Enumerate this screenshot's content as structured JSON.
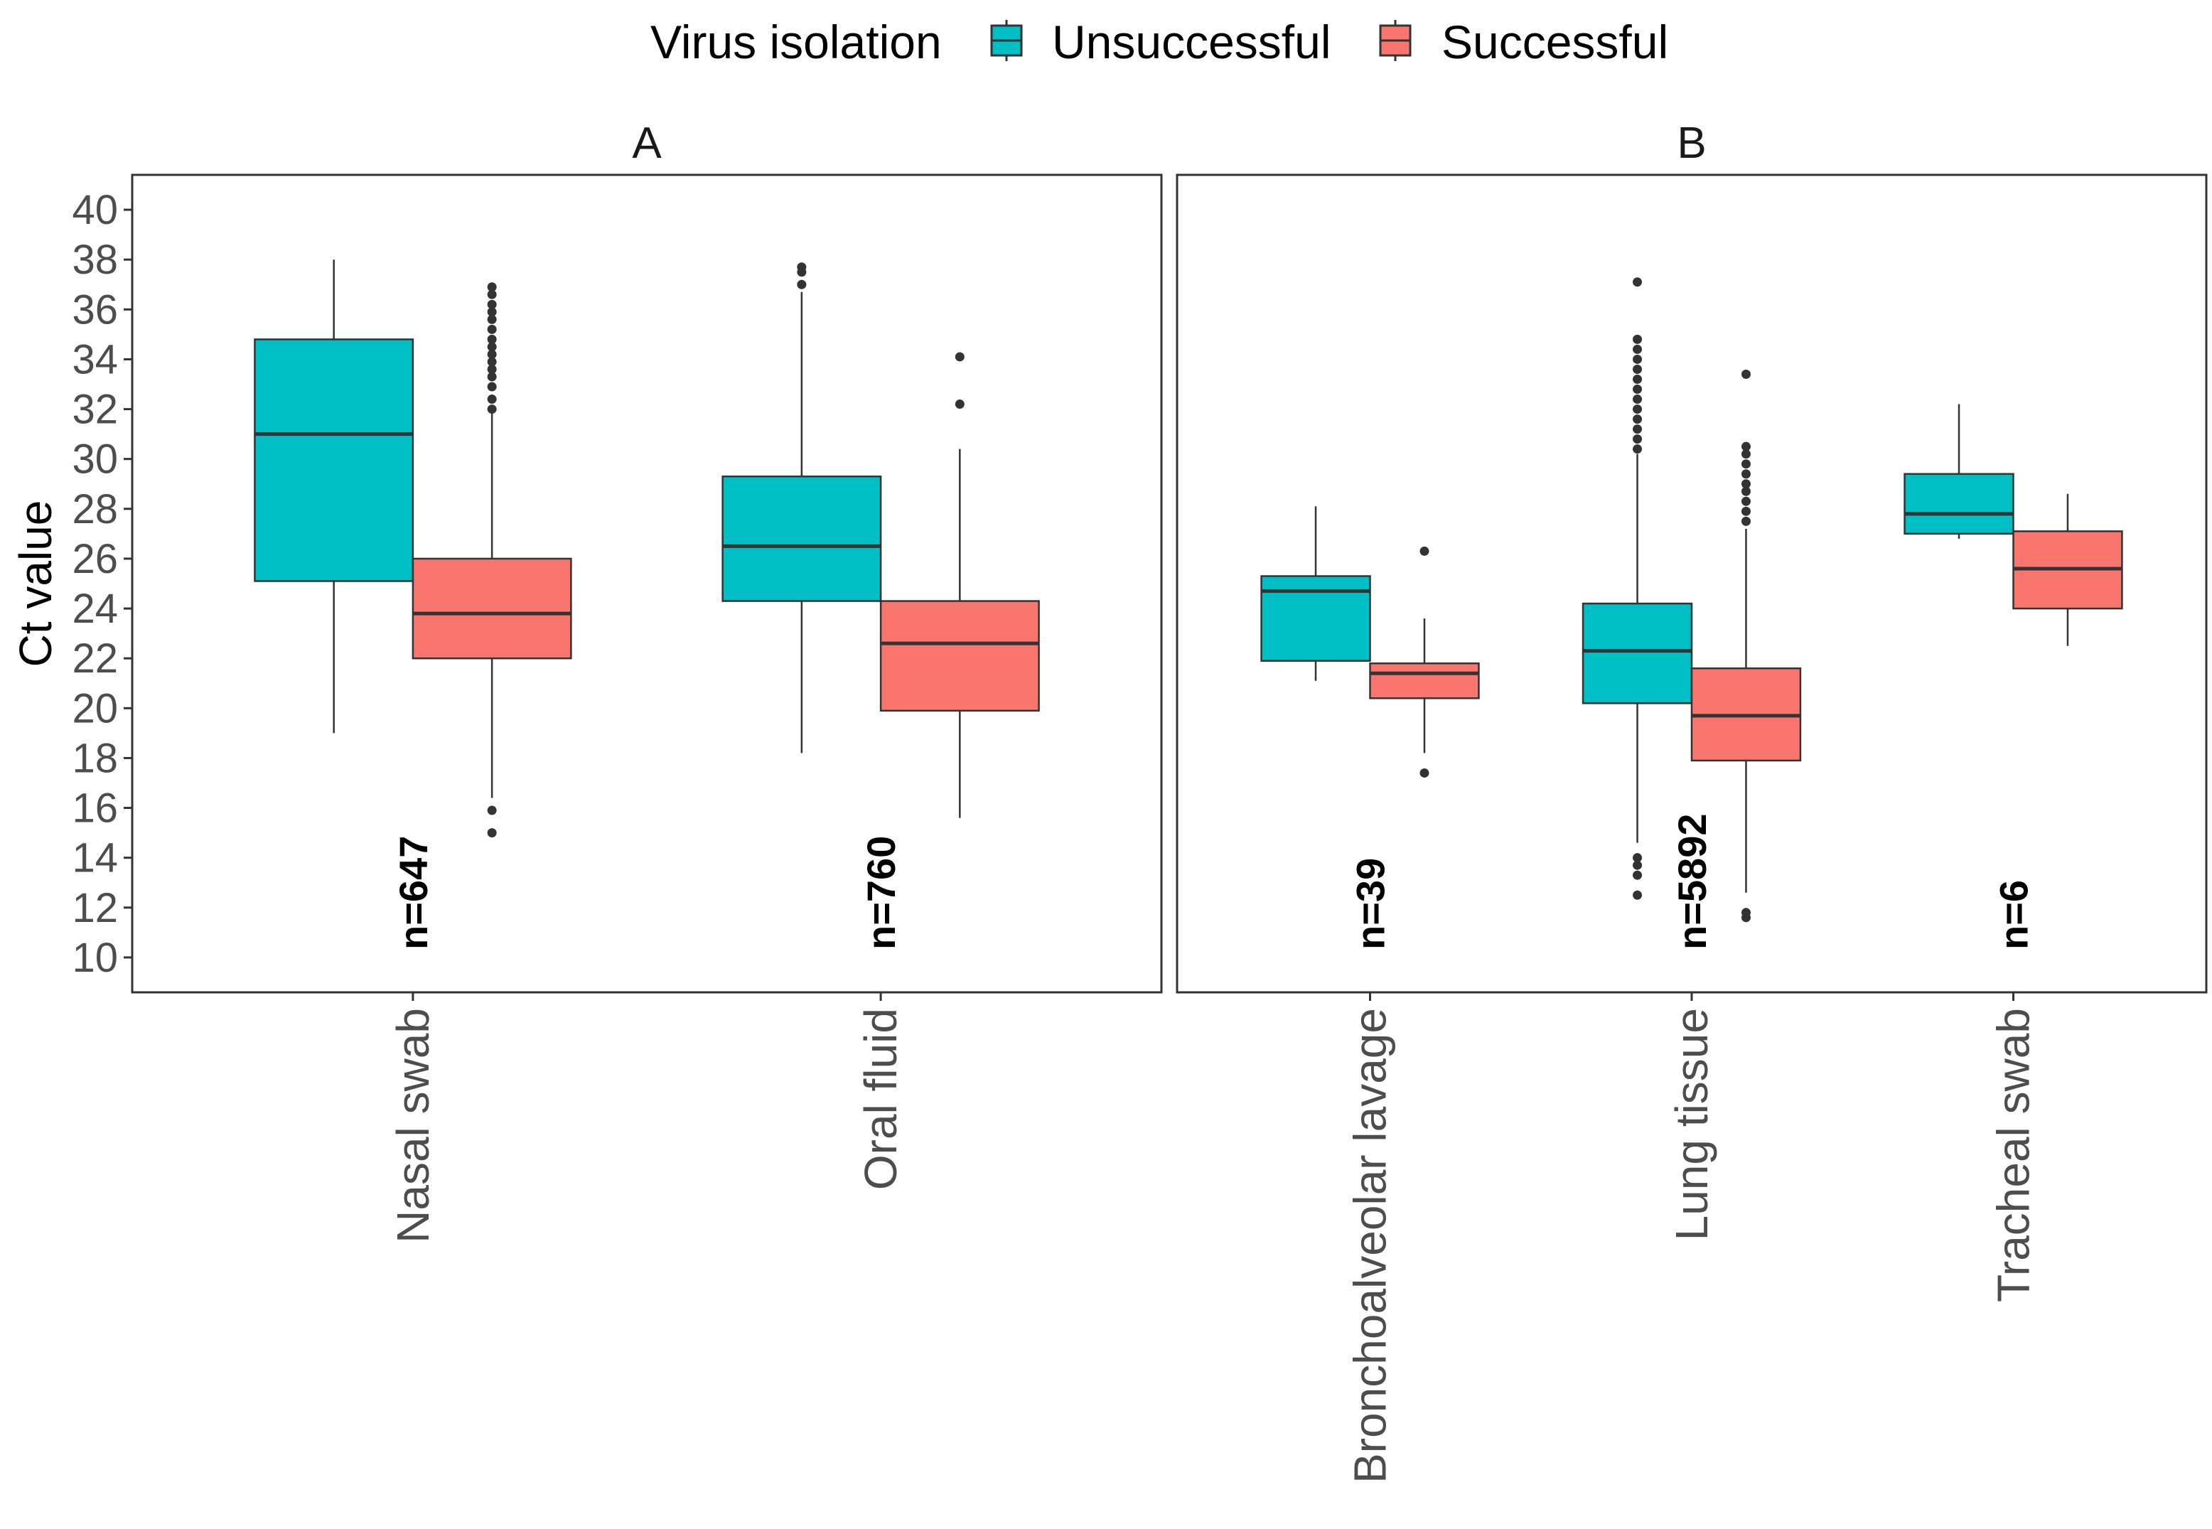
{
  "chart_data": {
    "type": "box",
    "ylabel": "Ct value",
    "ylim": [
      8.6,
      41.4
    ],
    "yticks": [
      10,
      12,
      14,
      16,
      18,
      20,
      22,
      24,
      26,
      28,
      30,
      32,
      34,
      36,
      38,
      40
    ],
    "legend": {
      "title": "Virus isolation",
      "position": "top",
      "entries": [
        {
          "name": "Unsuccessful",
          "color": "#00BFC4"
        },
        {
          "name": "Successful",
          "color": "#F8766D"
        }
      ]
    },
    "panels": [
      {
        "title": "A",
        "categories": [
          "Nasal swab",
          "Oral fluid"
        ],
        "n_labels": [
          "n=647",
          "n=760"
        ],
        "boxes": [
          {
            "category": "Nasal swab",
            "group": "Unsuccessful",
            "min": 19.0,
            "q1": 25.1,
            "median": 31.0,
            "q3": 34.8,
            "max": 38.0,
            "outliers": []
          },
          {
            "category": "Nasal swab",
            "group": "Successful",
            "min": 16.4,
            "q1": 22.0,
            "median": 23.8,
            "q3": 26.0,
            "max": 31.9,
            "outliers": [
              15.0,
              15.9,
              32.0,
              32.4,
              32.9,
              33.3,
              33.6,
              33.9,
              34.2,
              34.5,
              34.8,
              35.2,
              35.6,
              35.9,
              36.2,
              36.6,
              36.9
            ]
          },
          {
            "category": "Oral fluid",
            "group": "Unsuccessful",
            "min": 18.2,
            "q1": 24.3,
            "median": 26.5,
            "q3": 29.3,
            "max": 36.7,
            "outliers": [
              37.0,
              37.5,
              37.7
            ]
          },
          {
            "category": "Oral fluid",
            "group": "Successful",
            "min": 15.6,
            "q1": 19.9,
            "median": 22.6,
            "q3": 24.3,
            "max": 30.4,
            "outliers": [
              32.2,
              34.1
            ]
          }
        ]
      },
      {
        "title": "B",
        "categories": [
          "Bronchoalveolar lavage",
          "Lung tissue",
          "Tracheal swab"
        ],
        "n_labels": [
          "n=39",
          "n=5892",
          "n=6"
        ],
        "boxes": [
          {
            "category": "Bronchoalveolar lavage",
            "group": "Unsuccessful",
            "min": 21.1,
            "q1": 21.9,
            "median": 24.7,
            "q3": 25.3,
            "max": 28.1,
            "outliers": []
          },
          {
            "category": "Bronchoalveolar lavage",
            "group": "Successful",
            "min": 18.2,
            "q1": 20.4,
            "median": 21.4,
            "q3": 21.8,
            "max": 23.6,
            "outliers": [
              17.4,
              26.3
            ]
          },
          {
            "category": "Lung tissue",
            "group": "Unsuccessful",
            "min": 14.6,
            "q1": 20.2,
            "median": 22.3,
            "q3": 24.2,
            "max": 30.2,
            "outliers": [
              12.5,
              13.3,
              13.7,
              14.0,
              30.4,
              30.8,
              31.2,
              31.6,
              32.0,
              32.4,
              32.8,
              33.2,
              33.6,
              34.0,
              34.4,
              34.8,
              37.1
            ]
          },
          {
            "category": "Lung tissue",
            "group": "Successful",
            "min": 12.6,
            "q1": 17.9,
            "median": 19.7,
            "q3": 21.6,
            "max": 27.2,
            "outliers": [
              11.6,
              11.8,
              27.5,
              27.9,
              28.3,
              28.7,
              29.0,
              29.4,
              29.8,
              30.2,
              30.5,
              33.4
            ]
          },
          {
            "category": "Tracheal swab",
            "group": "Unsuccessful",
            "min": 26.8,
            "q1": 27.0,
            "median": 27.8,
            "q3": 29.4,
            "max": 32.2,
            "outliers": []
          },
          {
            "category": "Tracheal swab",
            "group": "Successful",
            "min": 22.5,
            "q1": 24.0,
            "median": 25.6,
            "q3": 27.1,
            "max": 28.6,
            "outliers": []
          }
        ]
      }
    ]
  }
}
